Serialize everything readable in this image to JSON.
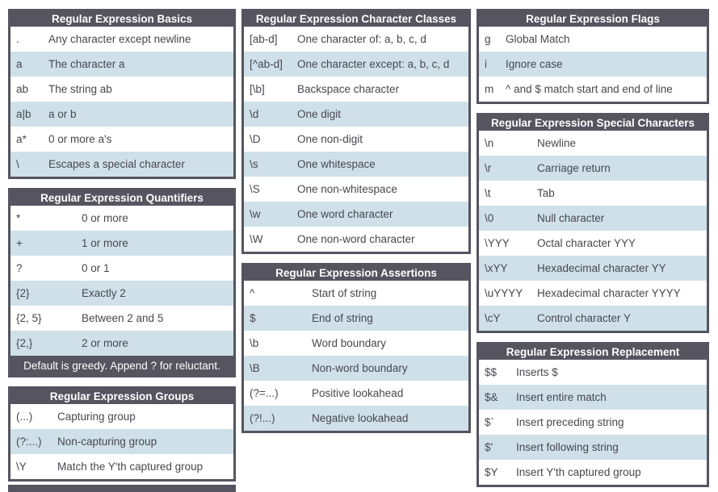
{
  "palette": {
    "header_bg": "#55545f",
    "border": "#55545f",
    "row_white": "#ffffff",
    "row_blue": "#cfe0e9",
    "header_text": "#ffffff",
    "row_text": "#47474f"
  },
  "columns": [
    {
      "name": "left",
      "tables": [
        {
          "id": "regex-basics",
          "title": "Regular Expression Basics",
          "rows": [
            {
              "pattern": ".",
              "meaning": "Any character except newline"
            },
            {
              "pattern": "a",
              "meaning": "The character a"
            },
            {
              "pattern": "ab",
              "meaning": "The string ab"
            },
            {
              "pattern": "a|b",
              "meaning": "a or b"
            },
            {
              "pattern": "a*",
              "meaning": "0 or more a's"
            },
            {
              "pattern": "\\",
              "meaning": "Escapes a special character"
            }
          ]
        },
        {
          "id": "regex-quantifiers",
          "title": "Regular Expression Quantifiers",
          "rows": [
            {
              "pattern": "*",
              "meaning": "0 or more"
            },
            {
              "pattern": "+",
              "meaning": "1 or more"
            },
            {
              "pattern": "?",
              "meaning": "0 or 1"
            },
            {
              "pattern": "{2}",
              "meaning": "Exactly 2"
            },
            {
              "pattern": "{2, 5}",
              "meaning": "Between 2 and 5"
            },
            {
              "pattern": "{2,}",
              "meaning": "2 or more"
            }
          ],
          "footer": "Default is greedy. Append ? for reluctant."
        },
        {
          "id": "regex-groups",
          "title": "Regular Expression Groups",
          "rows": [
            {
              "pattern": "(...)",
              "meaning": "Capturing group"
            },
            {
              "pattern": "(?:...)",
              "meaning": "Non-capturing group"
            },
            {
              "pattern": "\\Y",
              "meaning": "Match the Y'th captured group"
            }
          ]
        },
        {
          "id": "cutoff-table",
          "title": "",
          "partial": true,
          "rows": []
        }
      ]
    },
    {
      "name": "middle",
      "tables": [
        {
          "id": "regex-character-classes",
          "title": "Regular Expression Character Classes",
          "rows": [
            {
              "pattern": "[ab-d]",
              "meaning": "One character of: a, b, c, d"
            },
            {
              "pattern": "[^ab-d]",
              "meaning": "One character except: a, b, c, d"
            },
            {
              "pattern": "[\\b]",
              "meaning": "Backspace character"
            },
            {
              "pattern": "\\d",
              "meaning": "One digit"
            },
            {
              "pattern": "\\D",
              "meaning": "One non-digit"
            },
            {
              "pattern": "\\s",
              "meaning": "One whitespace"
            },
            {
              "pattern": "\\S",
              "meaning": "One non-whitespace"
            },
            {
              "pattern": "\\w",
              "meaning": "One word character"
            },
            {
              "pattern": "\\W",
              "meaning": "One non-word character"
            }
          ]
        },
        {
          "id": "regex-assertions",
          "title": "Regular Expression Assertions",
          "rows": [
            {
              "pattern": "^",
              "meaning": "Start of string"
            },
            {
              "pattern": "$",
              "meaning": "End of string"
            },
            {
              "pattern": "\\b",
              "meaning": "Word boundary"
            },
            {
              "pattern": "\\B",
              "meaning": "Non-word boundary"
            },
            {
              "pattern": "(?=...)",
              "meaning": "Positive lookahead"
            },
            {
              "pattern": "(?!...)",
              "meaning": "Negative lookahead"
            }
          ]
        }
      ]
    },
    {
      "name": "right",
      "tables": [
        {
          "id": "regex-flags",
          "title": "Regular Expression Flags",
          "rows": [
            {
              "pattern": "g",
              "meaning": "Global Match"
            },
            {
              "pattern": "i",
              "meaning": "Ignore case"
            },
            {
              "pattern": "m",
              "meaning": "^ and $ match start and end of line"
            }
          ]
        },
        {
          "id": "regex-special-characters",
          "title": "Regular Expression Special Characters",
          "rows": [
            {
              "pattern": "\\n",
              "meaning": "Newline"
            },
            {
              "pattern": "\\r",
              "meaning": "Carriage return"
            },
            {
              "pattern": "\\t",
              "meaning": "Tab"
            },
            {
              "pattern": "\\0",
              "meaning": "Null character"
            },
            {
              "pattern": "\\YYY",
              "meaning": "Octal character YYY"
            },
            {
              "pattern": "\\xYY",
              "meaning": "Hexadecimal character YY"
            },
            {
              "pattern": "\\uYYYY",
              "meaning": "Hexadecimal character YYYY"
            },
            {
              "pattern": "\\cY",
              "meaning": "Control character Y"
            }
          ]
        },
        {
          "id": "regex-replacement",
          "title": "Regular Expression Replacement",
          "rows": [
            {
              "pattern": "$$",
              "meaning": "Inserts $"
            },
            {
              "pattern": "$&",
              "meaning": "Insert entire match"
            },
            {
              "pattern": "$`",
              "meaning": "Insert preceding string"
            },
            {
              "pattern": "$'",
              "meaning": "Insert following string"
            },
            {
              "pattern": "$Y",
              "meaning": "Insert Y'th captured group"
            }
          ]
        }
      ]
    }
  ]
}
